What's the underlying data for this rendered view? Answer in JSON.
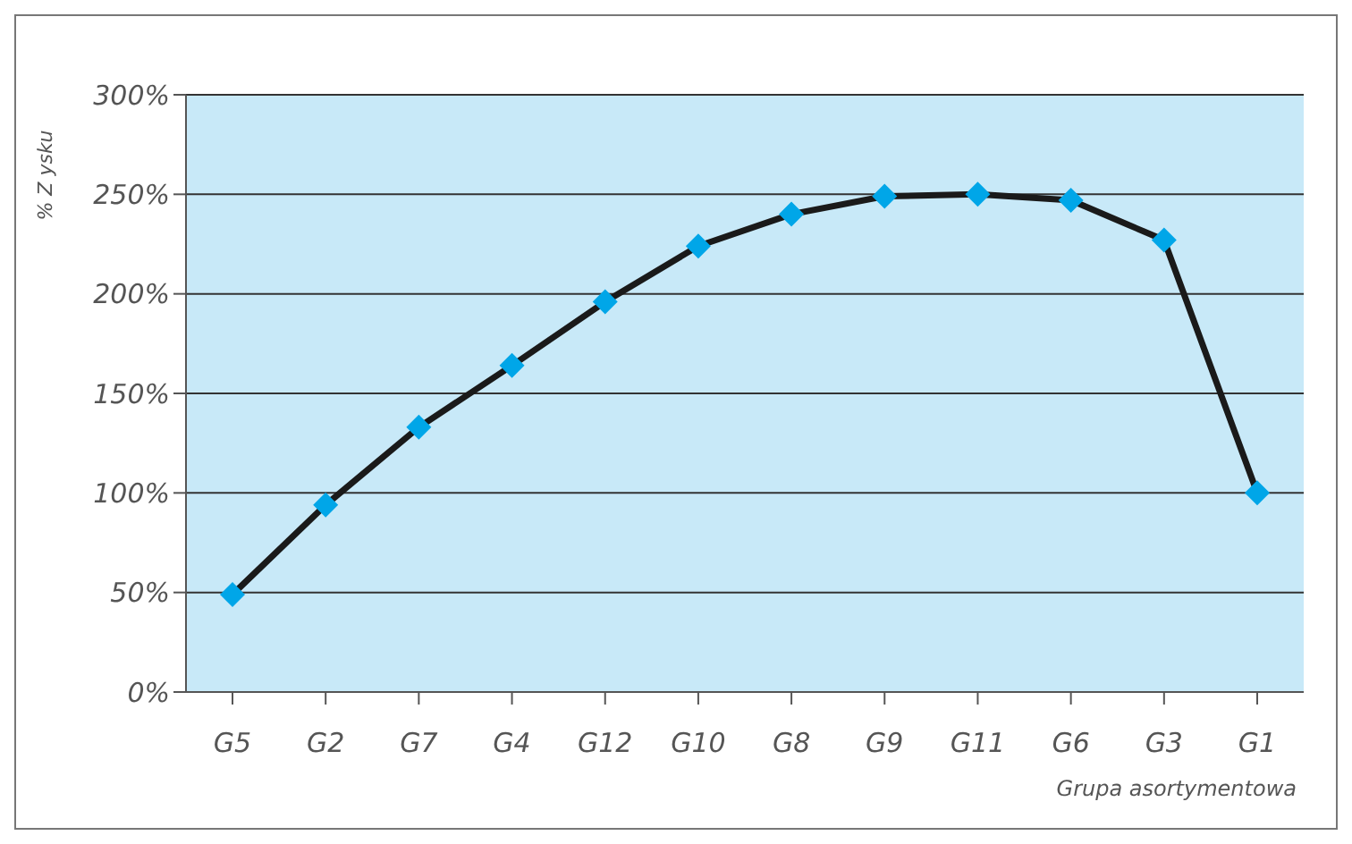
{
  "chart_data": {
    "type": "line",
    "xlabel": "Grupa  asortymentowa",
    "ylabel": "% Z ysku",
    "categories": [
      "G5",
      "G2",
      "G7",
      "G4",
      "G12",
      "G10",
      "G8",
      "G9",
      "G11",
      "G6",
      "G3",
      "G1"
    ],
    "series": [
      {
        "color": "#1a1a1a",
        "values": [
          49,
          94,
          133,
          164,
          196,
          224,
          240,
          249,
          250,
          247,
          227,
          100
        ]
      }
    ],
    "ylim": [
      0,
      300
    ],
    "yticks": [
      {
        "value": 0,
        "label": "0%"
      },
      {
        "value": 50,
        "label": "50%"
      },
      {
        "value": 100,
        "label": "100%"
      },
      {
        "value": 150,
        "label": "150%"
      },
      {
        "value": 200,
        "label": "200%"
      },
      {
        "value": 250,
        "label": "250%"
      },
      {
        "value": 300,
        "label": "300%"
      }
    ],
    "grid": "y",
    "marker": "diamond",
    "line_style": "solid",
    "legend": false
  }
}
